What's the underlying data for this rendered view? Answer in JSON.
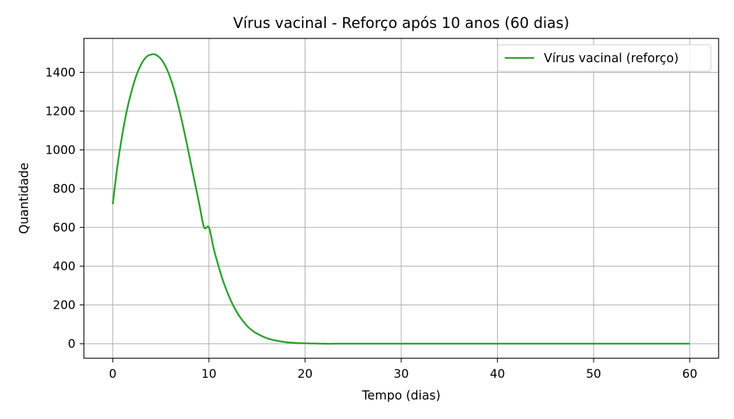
{
  "chart_data": {
    "type": "line",
    "title": "Vírus vacinal - Reforço após 10 anos (60 dias)",
    "xlabel": "Tempo (dias)",
    "ylabel": "Quantidade",
    "xlim": [
      -3,
      63
    ],
    "ylim": [
      -75,
      1575
    ],
    "xticks": [
      0,
      10,
      20,
      30,
      40,
      50,
      60
    ],
    "yticks": [
      0,
      200,
      400,
      600,
      800,
      1000,
      1200,
      1400
    ],
    "grid": true,
    "legend_position": "top-right",
    "series": [
      {
        "name": "Vírus vacinal (reforço)",
        "color": "#2ca02c",
        "x": [
          0,
          0.5,
          1,
          1.5,
          2,
          2.5,
          3,
          3.5,
          4,
          4.3,
          4.5,
          5,
          5.5,
          6,
          6.5,
          7,
          7.5,
          8,
          8.5,
          9,
          9.5,
          10,
          10.5,
          11,
          11.5,
          12,
          12.5,
          13,
          13.5,
          14,
          14.5,
          15,
          16,
          17,
          18,
          19,
          20,
          21,
          22,
          23,
          24,
          26,
          30,
          40,
          50,
          60
        ],
        "y": [
          720,
          920,
          1080,
          1210,
          1310,
          1390,
          1445,
          1480,
          1492,
          1493,
          1490,
          1470,
          1430,
          1370,
          1290,
          1190,
          1080,
          960,
          840,
          720,
          600,
          600,
          490,
          400,
          320,
          255,
          200,
          155,
          120,
          90,
          68,
          52,
          29,
          16,
          8,
          4,
          2,
          1,
          0,
          0,
          0,
          0,
          0,
          0,
          0,
          0
        ]
      }
    ]
  }
}
